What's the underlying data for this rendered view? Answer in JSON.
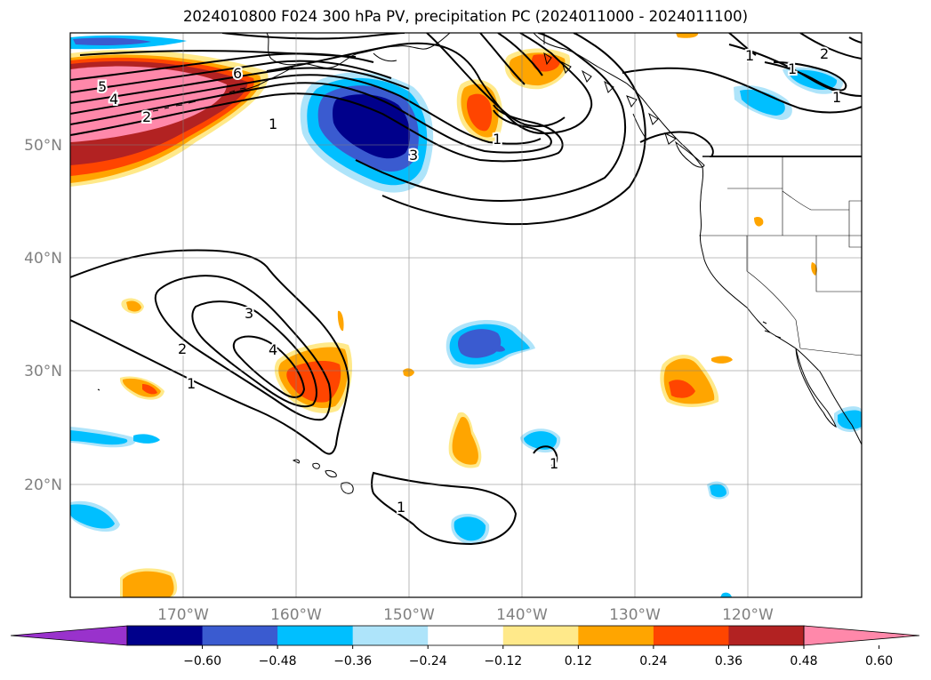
{
  "title": "2024010800 F024 300 hPa PV, precipitation PC (2024011000 - 2024011100)",
  "lat_labels": [
    "50°N",
    "40°N",
    "30°N",
    "20°N"
  ],
  "lon_labels": [
    "170°W",
    "160°W",
    "150°W",
    "140°W",
    "130°W",
    "120°W"
  ],
  "contour_labels": [
    "6",
    "5",
    "4",
    "2",
    "1",
    "3",
    "3",
    "4",
    "2",
    "1",
    "1",
    "1",
    "1",
    "2",
    "1",
    "1",
    "1"
  ],
  "colorbar": {
    "ticks": [
      "−0.60",
      "−0.48",
      "−0.36",
      "−0.24",
      "−0.12",
      "0.12",
      "0.24",
      "0.36",
      "0.48",
      "0.60"
    ],
    "colors": [
      "#9932cc",
      "#00008b",
      "#3a5bd0",
      "#00bfff",
      "#aee4fa",
      "#ffffff",
      "#ffe98a",
      "#ffa500",
      "#ff4500",
      "#b22222",
      "#ff88aa"
    ]
  },
  "colors": {
    "deep_blue": "#00008b",
    "mid_blue": "#3a5bd0",
    "sky_blue": "#00bfff",
    "light_blue": "#aee4fa",
    "light_yellow": "#ffe98a",
    "orange": "#ffa500",
    "red_orange": "#ff4500",
    "dark_red": "#b22222",
    "pink": "#ff88aa"
  }
}
